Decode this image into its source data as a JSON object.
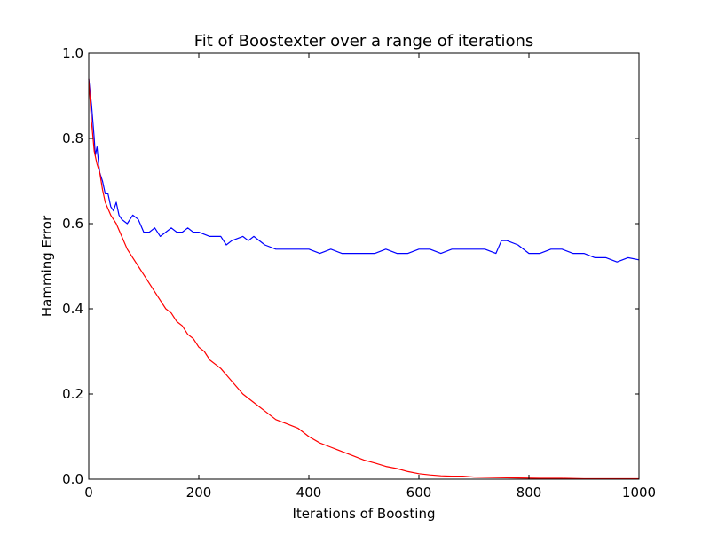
{
  "chart_data": {
    "type": "line",
    "title": "Fit of Boostexter over a range of iterations",
    "xlabel": "Iterations of Boosting",
    "ylabel": "Hamming Error",
    "xlim": [
      0,
      1000
    ],
    "ylim": [
      0.0,
      1.0
    ],
    "x_ticks": [
      "0",
      "200",
      "400",
      "600",
      "800",
      "1000"
    ],
    "y_ticks": [
      "0.0",
      "0.2",
      "0.4",
      "0.6",
      "0.8",
      "1.0"
    ],
    "grid": false,
    "legend": "none",
    "series": [
      {
        "color": "#0000ff",
        "x": [
          0,
          5,
          10,
          12,
          15,
          18,
          20,
          25,
          30,
          35,
          40,
          45,
          50,
          55,
          60,
          70,
          80,
          90,
          100,
          110,
          120,
          130,
          140,
          150,
          160,
          170,
          180,
          190,
          200,
          220,
          240,
          250,
          260,
          280,
          290,
          300,
          320,
          340,
          360,
          380,
          400,
          420,
          440,
          460,
          480,
          500,
          520,
          540,
          560,
          580,
          600,
          620,
          640,
          660,
          680,
          700,
          720,
          740,
          750,
          760,
          780,
          800,
          820,
          840,
          860,
          880,
          900,
          920,
          940,
          960,
          980,
          1000
        ],
        "y": [
          0.94,
          0.88,
          0.8,
          0.76,
          0.78,
          0.74,
          0.72,
          0.7,
          0.67,
          0.67,
          0.64,
          0.63,
          0.65,
          0.62,
          0.61,
          0.6,
          0.62,
          0.61,
          0.58,
          0.58,
          0.59,
          0.57,
          0.58,
          0.59,
          0.58,
          0.58,
          0.59,
          0.58,
          0.58,
          0.57,
          0.57,
          0.55,
          0.56,
          0.57,
          0.56,
          0.57,
          0.55,
          0.54,
          0.54,
          0.54,
          0.54,
          0.53,
          0.54,
          0.53,
          0.53,
          0.53,
          0.53,
          0.54,
          0.53,
          0.53,
          0.54,
          0.54,
          0.53,
          0.54,
          0.54,
          0.54,
          0.54,
          0.53,
          0.56,
          0.56,
          0.55,
          0.53,
          0.53,
          0.54,
          0.54,
          0.53,
          0.53,
          0.52,
          0.52,
          0.51,
          0.52,
          0.515
        ]
      },
      {
        "color": "#ff0000",
        "x": [
          0,
          5,
          10,
          15,
          20,
          25,
          30,
          40,
          50,
          60,
          70,
          80,
          90,
          100,
          110,
          120,
          130,
          140,
          150,
          160,
          170,
          180,
          190,
          200,
          210,
          220,
          240,
          260,
          280,
          300,
          320,
          340,
          360,
          380,
          400,
          420,
          440,
          460,
          480,
          500,
          520,
          540,
          560,
          580,
          600,
          620,
          640,
          660,
          680,
          700,
          740,
          780,
          820,
          860,
          900,
          940,
          980,
          1000
        ],
        "y": [
          0.94,
          0.84,
          0.77,
          0.74,
          0.72,
          0.68,
          0.65,
          0.62,
          0.6,
          0.57,
          0.54,
          0.52,
          0.5,
          0.48,
          0.46,
          0.44,
          0.42,
          0.4,
          0.39,
          0.37,
          0.36,
          0.34,
          0.33,
          0.31,
          0.3,
          0.28,
          0.26,
          0.23,
          0.2,
          0.18,
          0.16,
          0.14,
          0.13,
          0.12,
          0.1,
          0.085,
          0.075,
          0.065,
          0.055,
          0.045,
          0.038,
          0.03,
          0.025,
          0.018,
          0.013,
          0.01,
          0.008,
          0.007,
          0.007,
          0.005,
          0.004,
          0.003,
          0.002,
          0.002,
          0.001,
          0.001,
          0.001,
          0.001
        ]
      }
    ]
  }
}
